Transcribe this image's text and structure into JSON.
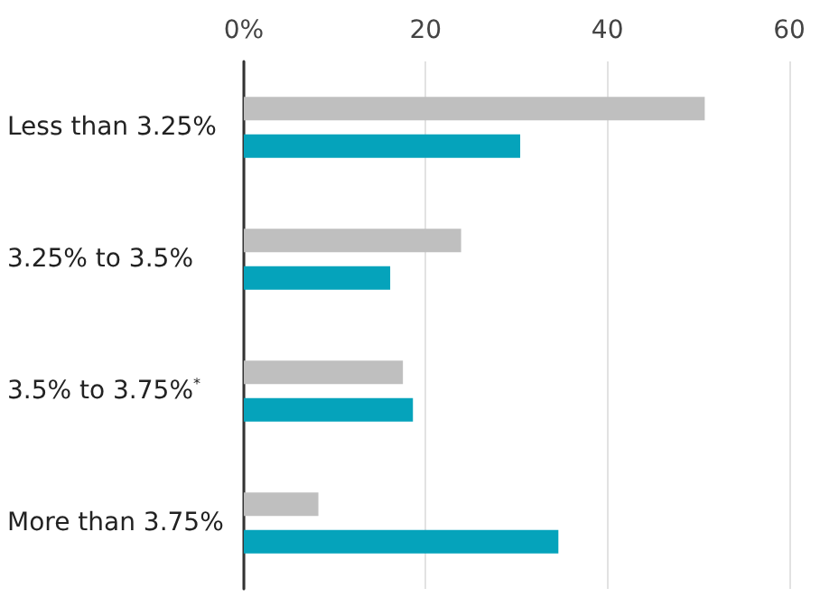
{
  "chart_data": {
    "type": "bar",
    "orientation": "horizontal",
    "categories": [
      "Less than 3.25%",
      "3.25% to 3.5%",
      "3.5% to 3.75%$^{*}$",
      "More than 3.75%"
    ],
    "series": [
      {
        "color": "#bfbfbf",
        "values": [
          50.7,
          23.9,
          17.5,
          8.2
        ]
      },
      {
        "color": "#05a3bb",
        "values": [
          30.4,
          16.1,
          18.6,
          34.6
        ]
      }
    ],
    "xlim": [
      0,
      60
    ],
    "xticks": [
      {
        "value": 0,
        "label": "0%"
      },
      20,
      40,
      60
    ],
    "grid": "x"
  }
}
